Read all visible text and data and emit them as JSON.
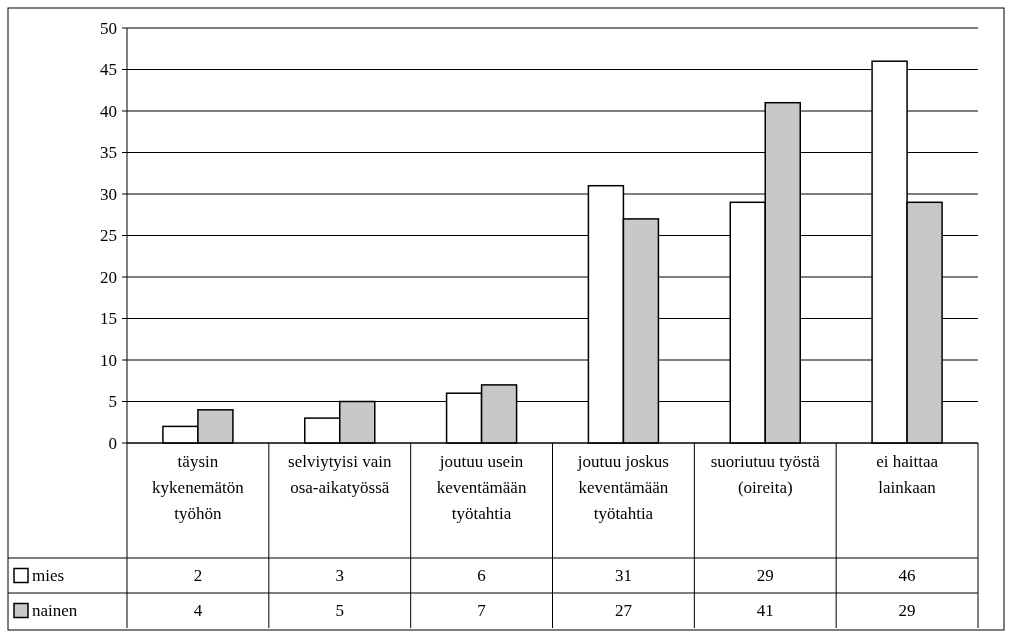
{
  "chart_data": {
    "type": "bar",
    "categories": [
      "täysin kykenemätön työhön",
      "selviytyisi vain osa-aikatyössä",
      "joutuu usein keventämään työtahtia",
      "joutuu joskus keventämään työtahtia",
      "suoriutuu työstä (oireita)",
      "ei haittaa lainkaan"
    ],
    "series": [
      {
        "name": "mies",
        "color": "#ffffff",
        "values": [
          2,
          3,
          6,
          31,
          29,
          46
        ]
      },
      {
        "name": "nainen",
        "color": "#c8c8c8",
        "values": [
          4,
          5,
          7,
          27,
          41,
          29
        ]
      }
    ],
    "ylim": [
      0,
      50
    ],
    "yticks": [
      0,
      5,
      10,
      15,
      20,
      25,
      30,
      35,
      40,
      45,
      50
    ],
    "grid": "y",
    "data_labels": true,
    "legend": "bottom left"
  }
}
